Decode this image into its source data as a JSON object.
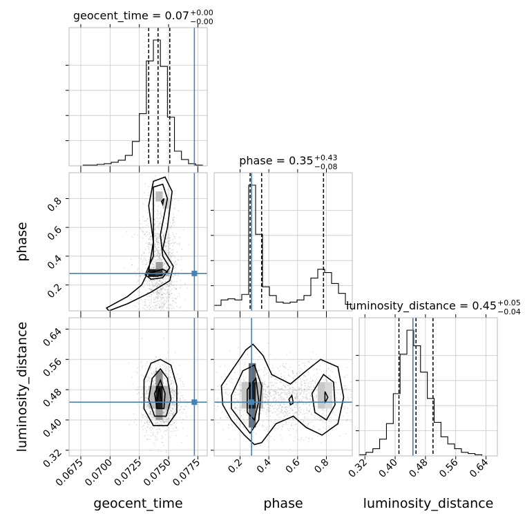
{
  "chart_data": {
    "type": "corner",
    "parameters": [
      "geocent_time",
      "phase",
      "luminosity_distance"
    ],
    "axis_labels": [
      "geocent_time",
      "phase",
      "luminosity_distance"
    ],
    "colors": {
      "truth": "#4682b4",
      "hist": "#000000",
      "grid": "#c8c8c8"
    },
    "truths": {
      "geocent_time": 0.0772,
      "phase": 0.28,
      "luminosity_distance": 0.447
    },
    "titles": [
      {
        "param": "geocent_time",
        "prefix": "geocent_time = 0.07",
        "plus": "+0.00",
        "minus": "−0.00"
      },
      {
        "param": "phase",
        "prefix": "phase = 0.35",
        "plus": "+0.43",
        "minus": "−0.08"
      },
      {
        "param": "luminosity_distance",
        "prefix": "luminosity_distance = 0.45",
        "plus": "+0.05",
        "minus": "−0.04"
      }
    ],
    "ranges": {
      "geocent_time": [
        0.0665,
        0.0783
      ],
      "phase": [
        0.02,
        0.98
      ],
      "luminosity_distance": [
        0.305,
        0.67
      ]
    },
    "ticks": {
      "geocent_time": [
        "0.0675",
        "0.0700",
        "0.0725",
        "0.0750",
        "0.0775"
      ],
      "phase": [
        "0.2",
        "0.4",
        "0.6",
        "0.8"
      ],
      "luminosity_distance": [
        "0.32",
        "0.40",
        "0.48",
        "0.56",
        "0.64"
      ]
    },
    "quantiles": {
      "geocent_time": [
        0.0733,
        0.0741,
        0.0751
      ],
      "phase": [
        0.27,
        0.35,
        0.78
      ],
      "luminosity_distance": [
        0.41,
        0.455,
        0.5
      ]
    },
    "histograms": {
      "geocent_time": {
        "edges": [
          0.0665,
          0.0671,
          0.0677,
          0.0683,
          0.0689,
          0.0695,
          0.0701,
          0.0707,
          0.0713,
          0.0719,
          0.0725,
          0.0731,
          0.0737,
          0.0743,
          0.0749,
          0.0755,
          0.0761,
          0.0767,
          0.0773,
          0.0779,
          0.0783
        ],
        "counts": [
          0,
          0,
          1,
          1,
          2,
          3,
          5,
          8,
          15,
          35,
          75,
          151,
          181,
          143,
          70,
          21,
          9,
          3,
          1,
          0
        ]
      },
      "phase": {
        "edges": [
          0.02,
          0.068,
          0.116,
          0.164,
          0.212,
          0.26,
          0.308,
          0.356,
          0.404,
          0.452,
          0.5,
          0.548,
          0.596,
          0.644,
          0.692,
          0.74,
          0.788,
          0.836,
          0.884,
          0.932,
          0.98
        ],
        "counts": [
          5,
          10,
          11,
          10,
          15,
          115,
          70,
          22,
          14,
          8,
          7,
          8,
          10,
          14,
          30,
          38,
          35,
          25,
          16,
          6
        ]
      },
      "luminosity_distance": {
        "edges": [
          0.305,
          0.323,
          0.341,
          0.359,
          0.377,
          0.395,
          0.413,
          0.431,
          0.449,
          0.467,
          0.485,
          0.503,
          0.521,
          0.539,
          0.557,
          0.575,
          0.593,
          0.611,
          0.629,
          0.647,
          0.665
        ],
        "counts": [
          1,
          3,
          6,
          14,
          27,
          52,
          85,
          105,
          92,
          70,
          48,
          28,
          16,
          10,
          6,
          3,
          2,
          1,
          0,
          0
        ]
      }
    },
    "pairs": [
      {
        "x": "geocent_time",
        "y": "phase",
        "sample_center_x": 0.0742,
        "sample_spread_x": 0.0008,
        "sample_center_y": 0.28,
        "sample_spread_y": 0.25,
        "contours": [
          [
            [
              0.0697,
              0.04
            ],
            [
              0.0715,
              0.12
            ],
            [
              0.0727,
              0.2
            ],
            [
              0.0733,
              0.3
            ],
            [
              0.0737,
              0.5
            ],
            [
              0.0733,
              0.75
            ],
            [
              0.0737,
              0.92
            ],
            [
              0.0747,
              0.95
            ],
            [
              0.0753,
              0.85
            ],
            [
              0.0749,
              0.6
            ],
            [
              0.0745,
              0.45
            ],
            [
              0.0754,
              0.33
            ],
            [
              0.0751,
              0.23
            ],
            [
              0.0735,
              0.15
            ],
            [
              0.0715,
              0.07
            ],
            [
              0.0699,
              0.02
            ]
          ],
          [
            [
              0.073,
              0.27
            ],
            [
              0.0737,
              0.4
            ],
            [
              0.0737,
              0.62
            ],
            [
              0.0737,
              0.88
            ],
            [
              0.0745,
              0.9
            ],
            [
              0.0749,
              0.8
            ],
            [
              0.0743,
              0.55
            ],
            [
              0.0745,
              0.4
            ],
            [
              0.0751,
              0.32
            ],
            [
              0.0745,
              0.25
            ],
            [
              0.0735,
              0.24
            ]
          ],
          [
            [
              0.0733,
              0.28
            ],
            [
              0.0745,
              0.31
            ],
            [
              0.0749,
              0.29
            ],
            [
              0.0741,
              0.26
            ],
            [
              0.0733,
              0.26
            ]
          ],
          [
            [
              0.0744,
              0.78
            ],
            [
              0.0746,
              0.8
            ],
            [
              0.0745,
              0.76
            ]
          ]
        ],
        "density_cells": [
          {
            "x": [
              0.0733,
              0.0739
            ],
            "y": [
              0.26,
              0.31
            ],
            "shade": "#1e1e1e"
          },
          {
            "x": [
              0.0739,
              0.0745
            ],
            "y": [
              0.26,
              0.31
            ],
            "shade": "#3a3a3a"
          },
          {
            "x": [
              0.0745,
              0.0751
            ],
            "y": [
              0.26,
              0.31
            ],
            "shade": "#b8b8b8"
          },
          {
            "x": [
              0.0739,
              0.0745
            ],
            "y": [
              0.31,
              0.36
            ],
            "shade": "#9a9a9a"
          },
          {
            "x": [
              0.0739,
              0.0745
            ],
            "y": [
              0.78,
              0.85
            ],
            "shade": "#bdbdbd"
          },
          {
            "x": [
              0.0745,
              0.0751
            ],
            "y": [
              0.73,
              0.8
            ],
            "shade": "#d4d4d4"
          }
        ]
      },
      {
        "x": "geocent_time",
        "y": "luminosity_distance",
        "sample_center_x": 0.0743,
        "sample_spread_x": 0.0008,
        "sample_center_y": 0.455,
        "sample_spread_y": 0.045,
        "contours": [
          [
            [
              0.0743,
              0.56
            ],
            [
              0.0752,
              0.545
            ],
            [
              0.0757,
              0.49
            ],
            [
              0.0757,
              0.42
            ],
            [
              0.0749,
              0.385
            ],
            [
              0.0737,
              0.385
            ],
            [
              0.0729,
              0.43
            ],
            [
              0.0729,
              0.505
            ],
            [
              0.0735,
              0.55
            ]
          ],
          [
            [
              0.0743,
              0.535
            ],
            [
              0.0749,
              0.51
            ],
            [
              0.0752,
              0.455
            ],
            [
              0.0748,
              0.41
            ],
            [
              0.0738,
              0.41
            ],
            [
              0.0733,
              0.455
            ],
            [
              0.0736,
              0.51
            ]
          ],
          [
            [
              0.0743,
              0.505
            ],
            [
              0.0747,
              0.47
            ],
            [
              0.0746,
              0.43
            ],
            [
              0.074,
              0.43
            ],
            [
              0.0738,
              0.47
            ]
          ],
          [
            [
              0.0742,
              0.485
            ],
            [
              0.0744,
              0.45
            ],
            [
              0.0741,
              0.445
            ],
            [
              0.074,
              0.45
            ]
          ]
        ],
        "density_cells": [
          {
            "x": [
              0.0739,
              0.0745
            ],
            "y": [
              0.43,
              0.49
            ],
            "shade": "#1e1e1e"
          },
          {
            "x": [
              0.0733,
              0.0739
            ],
            "y": [
              0.43,
              0.49
            ],
            "shade": "#bdbdbd"
          },
          {
            "x": [
              0.0745,
              0.0751
            ],
            "y": [
              0.43,
              0.49
            ],
            "shade": "#b0b0b0"
          },
          {
            "x": [
              0.0739,
              0.0745
            ],
            "y": [
              0.49,
              0.53
            ],
            "shade": "#8c8c8c"
          },
          {
            "x": [
              0.0739,
              0.0745
            ],
            "y": [
              0.4,
              0.43
            ],
            "shade": "#9a9a9a"
          }
        ]
      },
      {
        "x": "phase",
        "y": "luminosity_distance",
        "sample_center_x": 0.5,
        "sample_spread_x": 0.25,
        "sample_center_y": 0.455,
        "sample_spread_y": 0.045,
        "contours": [
          [
            [
              0.07,
              0.49
            ],
            [
              0.15,
              0.535
            ],
            [
              0.24,
              0.585
            ],
            [
              0.29,
              0.6
            ],
            [
              0.36,
              0.57
            ],
            [
              0.42,
              0.52
            ],
            [
              0.55,
              0.495
            ],
            [
              0.66,
              0.53
            ],
            [
              0.76,
              0.56
            ],
            [
              0.88,
              0.54
            ],
            [
              0.92,
              0.46
            ],
            [
              0.88,
              0.39
            ],
            [
              0.77,
              0.36
            ],
            [
              0.66,
              0.38
            ],
            [
              0.57,
              0.41
            ],
            [
              0.45,
              0.39
            ],
            [
              0.35,
              0.34
            ],
            [
              0.3,
              0.335
            ],
            [
              0.23,
              0.36
            ],
            [
              0.14,
              0.4
            ],
            [
              0.08,
              0.44
            ]
          ],
          [
            [
              0.14,
              0.465
            ],
            [
              0.22,
              0.53
            ],
            [
              0.3,
              0.545
            ],
            [
              0.35,
              0.49
            ],
            [
              0.33,
              0.4
            ],
            [
              0.27,
              0.365
            ],
            [
              0.2,
              0.4
            ],
            [
              0.14,
              0.43
            ]
          ],
          [
            [
              0.25,
              0.48
            ],
            [
              0.31,
              0.51
            ],
            [
              0.33,
              0.45
            ],
            [
              0.3,
              0.4
            ],
            [
              0.25,
              0.42
            ]
          ],
          [
            [
              0.7,
              0.47
            ],
            [
              0.78,
              0.52
            ],
            [
              0.85,
              0.5
            ],
            [
              0.86,
              0.44
            ],
            [
              0.8,
              0.4
            ],
            [
              0.72,
              0.42
            ]
          ],
          [
            [
              0.79,
              0.475
            ],
            [
              0.81,
              0.46
            ],
            [
              0.79,
              0.445
            ]
          ],
          [
            [
              0.54,
              0.455
            ],
            [
              0.56,
              0.465
            ],
            [
              0.57,
              0.445
            ],
            [
              0.55,
              0.44
            ]
          ]
        ],
        "density_cells": [
          {
            "x": [
              0.26,
              0.31
            ],
            "y": [
              0.43,
              0.5
            ],
            "shade": "#1e1e1e"
          },
          {
            "x": [
              0.26,
              0.31
            ],
            "y": [
              0.5,
              0.55
            ],
            "shade": "#6a6a6a"
          },
          {
            "x": [
              0.26,
              0.31
            ],
            "y": [
              0.38,
              0.43
            ],
            "shade": "#707070"
          },
          {
            "x": [
              0.31,
              0.36
            ],
            "y": [
              0.43,
              0.5
            ],
            "shade": "#bdbdbd"
          },
          {
            "x": [
              0.21,
              0.26
            ],
            "y": [
              0.43,
              0.5
            ],
            "shade": "#c4c4c4"
          },
          {
            "x": [
              0.74,
              0.79
            ],
            "y": [
              0.43,
              0.5
            ],
            "shade": "#c8c8c8"
          },
          {
            "x": [
              0.79,
              0.84
            ],
            "y": [
              0.43,
              0.5
            ],
            "shade": "#d8d8d8"
          }
        ]
      }
    ]
  }
}
